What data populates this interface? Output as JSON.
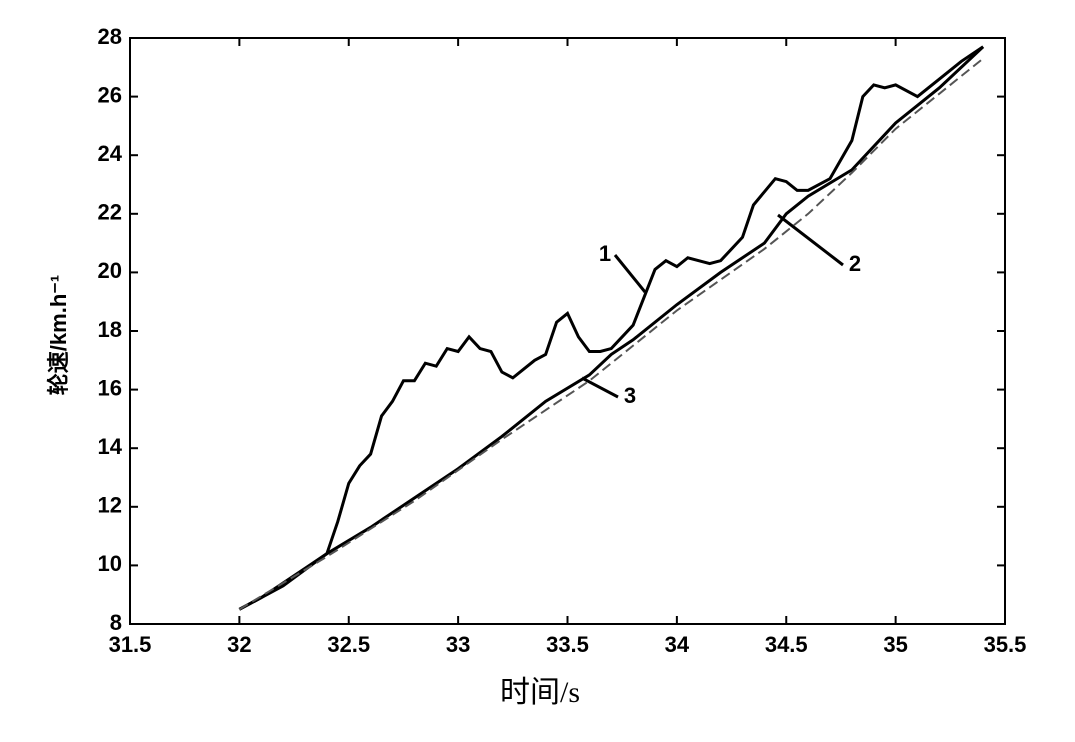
{
  "chart_data": {
    "type": "line",
    "x_label": "时间/s",
    "y_label": "轮速/km.h⁻¹",
    "xlim": [
      31.5,
      35.5
    ],
    "xticks": [
      31.5,
      32,
      32.5,
      33,
      33.5,
      34,
      34.5,
      35,
      35.5
    ],
    "ylim": [
      8,
      28
    ],
    "yticks": [
      8,
      10,
      12,
      14,
      16,
      18,
      20,
      22,
      24,
      26,
      28
    ],
    "series": [
      {
        "name": "1",
        "color": "#000000",
        "x": [
          32,
          32.1,
          32.2,
          32.3,
          32.4,
          32.45,
          32.5,
          32.55,
          32.6,
          32.65,
          32.7,
          32.75,
          32.8,
          32.85,
          32.9,
          32.95,
          33.0,
          33.05,
          33.1,
          33.15,
          33.2,
          33.25,
          33.3,
          33.35,
          33.4,
          33.45,
          33.5,
          33.55,
          33.6,
          33.65,
          33.7,
          33.8,
          33.9,
          33.95,
          34.0,
          34.05,
          34.1,
          34.15,
          34.2,
          34.3,
          34.35,
          34.45,
          34.5,
          34.55,
          34.6,
          34.7,
          34.8,
          34.85,
          34.9,
          34.95,
          35.0,
          35.1,
          35.2,
          35.3,
          35.4
        ],
        "values": [
          8.5,
          8.9,
          9.4,
          9.9,
          10.4,
          11.5,
          12.8,
          13.4,
          13.8,
          15.1,
          15.6,
          16.3,
          16.3,
          16.9,
          16.8,
          17.4,
          17.3,
          17.8,
          17.4,
          17.3,
          16.6,
          16.4,
          16.7,
          17.0,
          17.2,
          18.3,
          18.6,
          17.8,
          17.3,
          17.3,
          17.4,
          18.2,
          20.1,
          20.4,
          20.2,
          20.5,
          20.4,
          20.3,
          20.4,
          21.2,
          22.3,
          23.2,
          23.1,
          22.8,
          22.8,
          23.2,
          24.5,
          26.0,
          26.4,
          26.3,
          26.4,
          26.0,
          26.6,
          27.2,
          27.7
        ]
      },
      {
        "name": "2",
        "color": "#000000",
        "x": [
          32,
          32.2,
          32.4,
          32.6,
          32.8,
          33.0,
          33.2,
          33.4,
          33.6,
          33.7,
          33.8,
          34.0,
          34.2,
          34.4,
          34.5,
          34.6,
          34.8,
          35.0,
          35.2,
          35.4
        ],
        "values": [
          8.5,
          9.3,
          10.4,
          11.3,
          12.3,
          13.3,
          14.4,
          15.6,
          16.5,
          17.2,
          17.7,
          18.9,
          20.0,
          21.0,
          22.0,
          22.6,
          23.5,
          25.1,
          26.3,
          27.7
        ]
      },
      {
        "name": "3",
        "color": "#555555",
        "dashed": true,
        "x": [
          32,
          32.4,
          32.8,
          33.2,
          33.6,
          33.8,
          34.0,
          34.4,
          34.6,
          34.8,
          35.0,
          35.2,
          35.4
        ],
        "values": [
          8.5,
          10.3,
          12.2,
          14.3,
          16.3,
          17.5,
          18.7,
          20.8,
          22.0,
          23.4,
          24.9,
          26.1,
          27.3
        ]
      }
    ]
  }
}
